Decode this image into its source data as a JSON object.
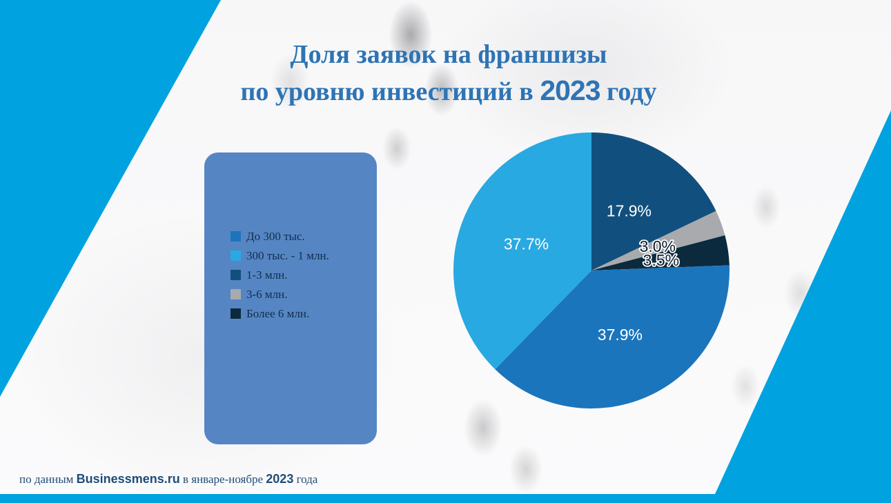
{
  "colors": {
    "accent": "#00A2E0",
    "title": "#2E74B5",
    "legend-bg": "#5586C3",
    "legend-text": "#112D4E",
    "footer-text": "#1F4C78"
  },
  "title": {
    "line1": "Доля заявок на франшизы",
    "line2_pre": "по уровню инвестиций в ",
    "year": "2023",
    "line2_post": " году"
  },
  "footer": {
    "pre": "по данным ",
    "brand": "Businessmens.ru",
    "mid": " в январе-ноябре ",
    "year": "2023",
    "post": " года"
  },
  "chart_data": {
    "type": "pie",
    "title": "Доля заявок на франшизы по уровню инвестиций в 2023 году",
    "legend_position": "left",
    "slices": [
      {
        "label": "До 300 тыс.",
        "value": 37.9,
        "pct_label": "37.9%",
        "color": "#1B75BC",
        "label_color": "#FFFFFF",
        "halo": false
      },
      {
        "label": "300 тыс. - 1 млн.",
        "value": 37.7,
        "pct_label": "37.7%",
        "color": "#29A9E1",
        "label_color": "#FFFFFF",
        "halo": false
      },
      {
        "label": "1-3 млн.",
        "value": 17.9,
        "pct_label": "17.9%",
        "color": "#11507E",
        "label_color": "#FFFFFF",
        "halo": false
      },
      {
        "label": "3-6 млн.",
        "value": 3.0,
        "pct_label": "3.0%",
        "color": "#A8AAAD",
        "label_color": "#0B1B2B",
        "halo": true
      },
      {
        "label": "Более 6 млн.",
        "value": 3.5,
        "pct_label": "3.5%",
        "color": "#0C2A3E",
        "label_color": "#0B1B2B",
        "halo": true
      }
    ],
    "draw_order_from_top_clockwise": [
      2,
      3,
      4,
      0,
      1
    ],
    "start_angle_deg": 0
  }
}
